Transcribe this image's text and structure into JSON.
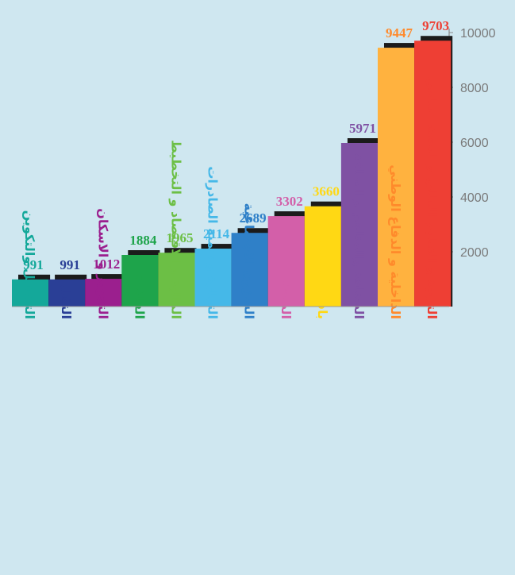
{
  "chart_data": {
    "type": "bar",
    "title": "",
    "xlabel": "",
    "ylabel": "",
    "ylim": [
      0,
      10000
    ],
    "y_ticks": [
      2000,
      4000,
      6000,
      8000,
      10000
    ],
    "y_axis_side": "right",
    "categories": [
      "التشغيل والتكوين",
      "النقل",
      "التجهيز و الاسكان",
      "الفلاحة",
      "المالية و الاقتصاد و التخطيط",
      "التجارة و تنمية الصادرات",
      "الشؤون الاجتماعية",
      "الصحة",
      "باقي النفقات",
      "الصناعة والمناجم و الطاقة",
      "الداخلية و الدفاع الوطني",
      "التربية و التعليم العالي و البحث العلمي"
    ],
    "values": [
      991,
      991,
      1012,
      1884,
      1965,
      2114,
      2689,
      3302,
      3660,
      5971,
      9447,
      9703
    ],
    "value_labels": [
      "991",
      "991",
      "1012",
      "1884",
      "1965",
      "2114",
      "2689",
      "3302",
      "3660",
      "5971",
      "9447",
      "9703"
    ],
    "colors": [
      "#14a89a",
      "#2a3f96",
      "#9b1f8e",
      "#1ea44b",
      "#6cbf45",
      "#45b8e8",
      "#2f80c8",
      "#d35fa9",
      "#ffd814",
      "#7f51a3",
      "#ffb23f",
      "#ee3f34"
    ],
    "label_colors": [
      "#14a89a",
      "#2a3f96",
      "#9b1f8e",
      "#1ea44b",
      "#6cbf45",
      "#45b8e8",
      "#2f80c8",
      "#d35fa9",
      "#ffd814",
      "#7f51a3",
      "#ff8a2b",
      "#ee3f34"
    ],
    "grid": false,
    "legend": "none"
  }
}
